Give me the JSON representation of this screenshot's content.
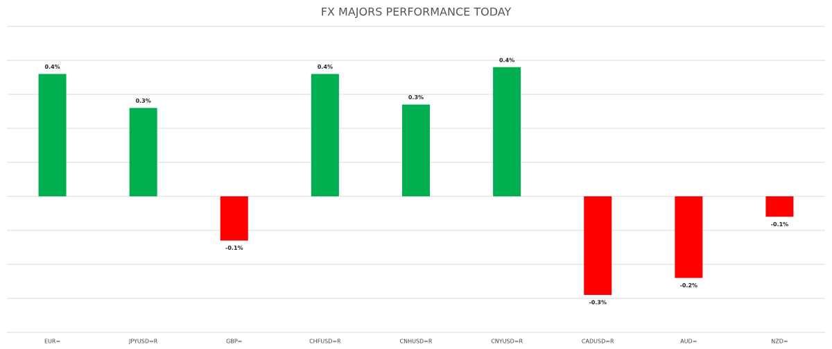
{
  "chart_data": {
    "type": "bar",
    "title": "FX MAJORS PERFORMANCE TODAY",
    "categories": [
      "EUR=",
      "JPYUSD=R",
      "GBP=",
      "CHFUSD=R",
      "CNHUSD=R",
      "CNYUSD=R",
      "CADUSD=R",
      "AUD=",
      "NZD="
    ],
    "values": [
      0.36,
      0.26,
      -0.13,
      0.36,
      0.27,
      0.38,
      -0.29,
      -0.24,
      -0.06
    ],
    "value_labels": [
      "0.4%",
      "0.3%",
      "-0.1%",
      "0.4%",
      "0.3%",
      "0.4%",
      "-0.3%",
      "-0.2%",
      "-0.1%"
    ],
    "color": "#00b050",
    "negative_color": "#ff0000",
    "ylim": [
      -0.4,
      0.5
    ],
    "yticks": [
      -0.4,
      -0.3,
      -0.2,
      -0.1,
      0,
      0.1,
      0.2,
      0.3,
      0.4,
      0.5
    ],
    "grid": true
  }
}
